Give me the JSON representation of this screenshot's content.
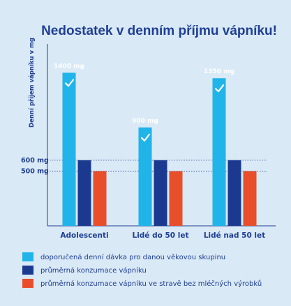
{
  "chart_data": {
    "type": "bar",
    "title": "Nedostatek v denním příjmu vápníku!",
    "ylabel": "Denní příjem vápníku v mg",
    "xlabel": "",
    "categories": [
      "Adolescenti",
      "Lidé do 50 let",
      "Lidé nad 50 let"
    ],
    "series": [
      {
        "name": "doporučená denní dávka pro danou věkovou skupinu",
        "values": [
          1400,
          900,
          1350
        ],
        "color": "#20b4e9",
        "value_labels": [
          "1400 mg",
          "900 mg",
          "1350 mg"
        ],
        "icon": "checkmark-icon"
      },
      {
        "name": "průměrná konzumace vápníku",
        "values": [
          600,
          600,
          600
        ],
        "color": "#1b3a8f"
      },
      {
        "name": "průměrná konzumace vápníku  ve stravě bez mléčných výrobků",
        "values": [
          500,
          500,
          500
        ],
        "color": "#e84e2a"
      }
    ],
    "reference_lines": [
      {
        "value": 600,
        "label": "600 mg"
      },
      {
        "value": 500,
        "label": "500 mg"
      }
    ],
    "ylim": [
      0,
      1600
    ],
    "grid": false,
    "legend_position": "bottom"
  }
}
